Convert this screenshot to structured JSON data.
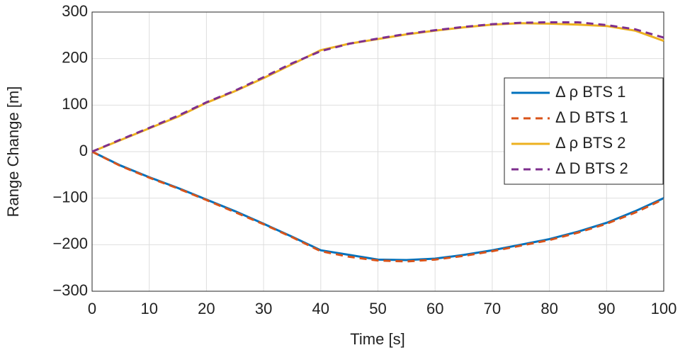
{
  "chart_data": {
    "type": "line",
    "x_label": "Time [s]",
    "y_label": "Range Change [m]",
    "x": [
      0,
      5,
      10,
      15,
      20,
      25,
      30,
      35,
      40,
      45,
      50,
      55,
      60,
      65,
      70,
      75,
      80,
      85,
      90,
      95,
      100
    ],
    "series": [
      {
        "name": "Δ ρ BTS 1",
        "color": "#0072bd",
        "dash": false,
        "values": [
          0,
          -30,
          -55,
          -78,
          -103,
          -128,
          -155,
          -183,
          -212,
          -222,
          -232,
          -233,
          -230,
          -222,
          -212,
          -200,
          -188,
          -172,
          -153,
          -128,
          -100
        ]
      },
      {
        "name": "Δ D BTS 1",
        "color": "#d95319",
        "dash": true,
        "values": [
          0,
          -31,
          -56,
          -79,
          -104,
          -130,
          -156,
          -184,
          -214,
          -226,
          -234,
          -236,
          -232,
          -224,
          -214,
          -202,
          -190,
          -174,
          -155,
          -131,
          -102
        ]
      },
      {
        "name": "Δ ρ BTS 2",
        "color": "#edb120",
        "dash": false,
        "values": [
          0,
          25,
          50,
          75,
          105,
          130,
          158,
          188,
          218,
          232,
          242,
          252,
          260,
          267,
          273,
          276,
          275,
          273,
          270,
          260,
          238
        ]
      },
      {
        "name": "Δ D BTS 2",
        "color": "#7e2f8e",
        "dash": true,
        "values": [
          0,
          26,
          51,
          77,
          106,
          131,
          160,
          190,
          216,
          232,
          243,
          253,
          261,
          268,
          274,
          277,
          278,
          278,
          272,
          263,
          245
        ]
      }
    ],
    "xlim": [
      0,
      100
    ],
    "xticks": [
      0,
      10,
      20,
      30,
      40,
      50,
      60,
      70,
      80,
      90,
      100
    ],
    "ylim": [
      -300,
      300
    ],
    "yticks": [
      {
        "value": -300,
        "label": "−300"
      },
      {
        "value": -200,
        "label": "−200"
      },
      {
        "value": -100,
        "label": "−100"
      },
      0,
      100,
      200,
      300
    ],
    "grid": true,
    "legend": "right"
  }
}
